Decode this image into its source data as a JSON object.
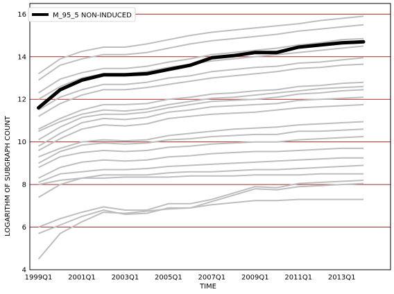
{
  "chart_data": {
    "type": "line",
    "title": "",
    "xlabel": "TIME",
    "ylabel": "LOGARITHM OF SUBGRAPH COUNT",
    "ylim": [
      4,
      16.5
    ],
    "xlim": [
      1998.6,
      2015.25
    ],
    "yticks": [
      4,
      6,
      8,
      10,
      12,
      14,
      16
    ],
    "xticks": [
      {
        "label": "1999Q1",
        "value": 1999.0
      },
      {
        "label": "2001Q1",
        "value": 2001.0
      },
      {
        "label": "2003Q1",
        "value": 2003.0
      },
      {
        "label": "2005Q1",
        "value": 2005.0
      },
      {
        "label": "2007Q1",
        "value": 2007.0
      },
      {
        "label": "2009Q1",
        "value": 2009.0
      },
      {
        "label": "2011Q1",
        "value": 2011.0
      },
      {
        "label": "2013Q1",
        "value": 2013.0
      }
    ],
    "grid": "horizontal",
    "grid_color": "#a52a2a",
    "legend_position": "top-left",
    "highlight": {
      "name": "M_95_5 NON-INDUCED",
      "color": "#000000",
      "x": [
        1999.0,
        2000.0,
        2001.0,
        2002.0,
        2003.0,
        2004.0,
        2005.0,
        2006.0,
        2007.0,
        2008.0,
        2009.0,
        2010.0,
        2011.0,
        2012.0,
        2013.0,
        2014.0
      ],
      "y": [
        11.6,
        12.45,
        12.9,
        13.15,
        13.15,
        13.2,
        13.4,
        13.6,
        13.95,
        14.05,
        14.2,
        14.2,
        14.45,
        14.55,
        14.65,
        14.7
      ]
    },
    "background_series_color": "#bdbdbd",
    "background_series": [
      {
        "x": [
          1999.0,
          2000.0,
          2001.0,
          2002.0,
          2003.0,
          2004.0,
          2005.0,
          2006.0,
          2007.0,
          2008.0,
          2009.0,
          2010.0,
          2011.0,
          2012.0,
          2013.0,
          2014.0
        ],
        "y": [
          13.2,
          13.9,
          14.25,
          14.45,
          14.45,
          14.6,
          14.8,
          15.0,
          15.15,
          15.25,
          15.35,
          15.45,
          15.55,
          15.7,
          15.8,
          15.9
        ]
      },
      {
        "x": [
          1999.0,
          2000.0,
          2001.0,
          2002.0,
          2003.0,
          2004.0,
          2005.0,
          2006.0,
          2007.0,
          2008.0,
          2009.0,
          2010.0,
          2011.0,
          2012.0,
          2013.0,
          2014.0
        ],
        "y": [
          12.9,
          13.6,
          13.9,
          14.1,
          14.1,
          14.2,
          14.4,
          14.6,
          14.75,
          14.85,
          14.95,
          15.05,
          15.2,
          15.3,
          15.4,
          15.5
        ]
      },
      {
        "x": [
          1999.0,
          2000.0,
          2001.0,
          2002.0,
          2003.0,
          2004.0,
          2005.0,
          2006.0,
          2007.0,
          2008.0,
          2009.0,
          2010.0,
          2011.0,
          2012.0,
          2013.0,
          2014.0
        ],
        "y": [
          12.3,
          12.95,
          13.25,
          13.45,
          13.45,
          13.55,
          13.75,
          13.9,
          14.1,
          14.2,
          14.3,
          14.4,
          14.55,
          14.65,
          14.8,
          14.85
        ]
      },
      {
        "x": [
          1999.0,
          2000.0,
          2001.0,
          2002.0,
          2003.0,
          2004.0,
          2005.0,
          2006.0,
          2007.0,
          2008.0,
          2009.0,
          2010.0,
          2011.0,
          2012.0,
          2013.0,
          2014.0
        ],
        "y": [
          12.0,
          12.6,
          13.0,
          13.2,
          13.2,
          13.3,
          13.5,
          13.65,
          13.8,
          13.9,
          14.0,
          14.1,
          14.2,
          14.3,
          14.4,
          14.5
        ]
      },
      {
        "x": [
          1999.0,
          2000.0,
          2001.0,
          2002.0,
          2003.0,
          2004.0,
          2005.0,
          2006.0,
          2007.0,
          2008.0,
          2009.0,
          2010.0,
          2011.0,
          2012.0,
          2013.0,
          2014.0
        ],
        "y": [
          11.5,
          12.1,
          12.45,
          12.7,
          12.7,
          12.8,
          13.0,
          13.1,
          13.3,
          13.4,
          13.5,
          13.55,
          13.7,
          13.75,
          13.85,
          13.95
        ]
      },
      {
        "x": [
          1999.0,
          2000.0,
          2001.0,
          2002.0,
          2003.0,
          2004.0,
          2005.0,
          2006.0,
          2007.0,
          2008.0,
          2009.0,
          2010.0,
          2011.0,
          2012.0,
          2013.0,
          2014.0
        ],
        "y": [
          11.2,
          11.8,
          12.2,
          12.45,
          12.45,
          12.55,
          12.7,
          12.85,
          13.0,
          13.1,
          13.2,
          13.3,
          13.45,
          13.5,
          13.6,
          13.65
        ]
      },
      {
        "x": [
          1999.0,
          2000.0,
          2001.0,
          2002.0,
          2003.0,
          2004.0,
          2005.0,
          2006.0,
          2007.0,
          2008.0,
          2009.0,
          2010.0,
          2011.0,
          2012.0,
          2013.0,
          2014.0
        ],
        "y": [
          10.6,
          11.1,
          11.5,
          11.75,
          11.75,
          11.8,
          12.0,
          12.1,
          12.25,
          12.3,
          12.4,
          12.45,
          12.6,
          12.65,
          12.75,
          12.8
        ]
      },
      {
        "x": [
          1999.0,
          2000.0,
          2001.0,
          2002.0,
          2003.0,
          2004.0,
          2005.0,
          2006.0,
          2007.0,
          2008.0,
          2009.0,
          2010.0,
          2011.0,
          2012.0,
          2013.0,
          2014.0
        ],
        "y": [
          10.5,
          10.95,
          11.3,
          11.5,
          11.45,
          11.55,
          11.75,
          11.9,
          12.05,
          12.1,
          12.2,
          12.3,
          12.4,
          12.5,
          12.55,
          12.6
        ]
      },
      {
        "x": [
          1999.0,
          2000.0,
          2001.0,
          2002.0,
          2003.0,
          2004.0,
          2005.0,
          2006.0,
          2007.0,
          2008.0,
          2009.0,
          2010.0,
          2011.0,
          2012.0,
          2013.0,
          2014.0
        ],
        "y": [
          10.1,
          10.7,
          11.15,
          11.3,
          11.3,
          11.4,
          11.6,
          11.75,
          11.9,
          11.95,
          12.0,
          12.1,
          12.25,
          12.3,
          12.4,
          12.45
        ]
      },
      {
        "x": [
          1999.0,
          2000.0,
          2001.0,
          2002.0,
          2003.0,
          2004.0,
          2005.0,
          2006.0,
          2007.0,
          2008.0,
          2009.0,
          2010.0,
          2011.0,
          2012.0,
          2013.0,
          2014.0
        ],
        "y": [
          9.8,
          10.4,
          10.9,
          11.1,
          11.05,
          11.15,
          11.4,
          11.5,
          11.65,
          11.7,
          11.75,
          11.8,
          11.95,
          12.0,
          12.05,
          12.1
        ]
      },
      {
        "x": [
          1999.0,
          2000.0,
          2001.0,
          2002.0,
          2003.0,
          2004.0,
          2005.0,
          2006.0,
          2007.0,
          2008.0,
          2009.0,
          2010.0,
          2011.0,
          2012.0,
          2013.0,
          2014.0
        ],
        "y": [
          9.6,
          10.15,
          10.6,
          10.8,
          10.75,
          10.85,
          11.1,
          11.2,
          11.3,
          11.35,
          11.4,
          11.5,
          11.6,
          11.65,
          11.7,
          11.75
        ]
      },
      {
        "x": [
          1999.0,
          2000.0,
          2001.0,
          2002.0,
          2003.0,
          2004.0,
          2005.0,
          2006.0,
          2007.0,
          2008.0,
          2009.0,
          2010.0,
          2011.0,
          2012.0,
          2013.0,
          2014.0
        ],
        "y": [
          9.3,
          9.7,
          10.0,
          10.1,
          10.05,
          10.1,
          10.3,
          10.4,
          10.5,
          10.6,
          10.65,
          10.7,
          10.8,
          10.85,
          10.9,
          10.95
        ]
      },
      {
        "x": [
          1999.0,
          2000.0,
          2001.0,
          2002.0,
          2003.0,
          2004.0,
          2005.0,
          2006.0,
          2007.0,
          2008.0,
          2009.0,
          2010.0,
          2011.0,
          2012.0,
          2013.0,
          2014.0
        ],
        "y": [
          9.0,
          9.55,
          9.85,
          9.95,
          9.9,
          9.95,
          10.1,
          10.15,
          10.25,
          10.3,
          10.35,
          10.35,
          10.5,
          10.5,
          10.55,
          10.6
        ]
      },
      {
        "x": [
          1999.0,
          2000.0,
          2001.0,
          2002.0,
          2003.0,
          2004.0,
          2005.0,
          2006.0,
          2007.0,
          2008.0,
          2009.0,
          2010.0,
          2011.0,
          2012.0,
          2013.0,
          2014.0
        ],
        "y": [
          8.8,
          9.3,
          9.5,
          9.6,
          9.55,
          9.6,
          9.75,
          9.8,
          9.9,
          9.95,
          10.0,
          10.0,
          10.1,
          10.15,
          10.2,
          10.25
        ]
      },
      {
        "x": [
          1999.0,
          2000.0,
          2001.0,
          2002.0,
          2003.0,
          2004.0,
          2005.0,
          2006.0,
          2007.0,
          2008.0,
          2009.0,
          2010.0,
          2011.0,
          2012.0,
          2013.0,
          2014.0
        ],
        "y": [
          8.3,
          8.8,
          9.05,
          9.15,
          9.1,
          9.15,
          9.3,
          9.35,
          9.45,
          9.5,
          9.55,
          9.55,
          9.6,
          9.65,
          9.7,
          9.7
        ]
      },
      {
        "x": [
          1999.0,
          2000.0,
          2001.0,
          2002.0,
          2003.0,
          2004.0,
          2005.0,
          2006.0,
          2007.0,
          2008.0,
          2009.0,
          2010.0,
          2011.0,
          2012.0,
          2013.0,
          2014.0
        ],
        "y": [
          8.1,
          8.5,
          8.6,
          8.7,
          8.7,
          8.75,
          8.85,
          8.9,
          8.95,
          9.0,
          9.05,
          9.1,
          9.15,
          9.2,
          9.25,
          9.25
        ]
      },
      {
        "x": [
          1999.0,
          2000.0,
          2001.0,
          2002.0,
          2003.0,
          2004.0,
          2005.0,
          2006.0,
          2007.0,
          2008.0,
          2009.0,
          2010.0,
          2011.0,
          2012.0,
          2013.0,
          2014.0
        ],
        "y": [
          7.4,
          8.0,
          8.3,
          8.45,
          8.45,
          8.45,
          8.55,
          8.6,
          8.6,
          8.65,
          8.7,
          8.7,
          8.75,
          8.8,
          8.85,
          8.9
        ]
      },
      {
        "x": [
          1999.0,
          2000.0,
          2001.0,
          2002.0,
          2003.0,
          2004.0,
          2005.0,
          2006.0,
          2007.0,
          2008.0,
          2009.0,
          2010.0,
          2011.0,
          2012.0,
          2013.0,
          2014.0
        ],
        "y": [
          8.0,
          8.2,
          8.3,
          8.3,
          8.35,
          8.35,
          8.35,
          8.4,
          8.4,
          8.4,
          8.45,
          8.45,
          8.45,
          8.5,
          8.5,
          8.5
        ]
      },
      {
        "x": [
          1999.0,
          2000.0,
          2001.0,
          2002.0,
          2003.0,
          2004.0,
          2005.0,
          2006.0,
          2007.0,
          2008.0,
          2009.0,
          2010.0,
          2011.0,
          2012.0,
          2013.0,
          2014.0
        ],
        "y": [
          6.0,
          6.4,
          6.7,
          6.95,
          6.8,
          6.8,
          7.1,
          7.1,
          7.3,
          7.6,
          7.9,
          7.85,
          8.05,
          8.1,
          8.15,
          8.2
        ]
      },
      {
        "x": [
          1999.0,
          2000.0,
          2001.0,
          2002.0,
          2003.0,
          2004.0,
          2005.0,
          2006.0,
          2007.0,
          2008.0,
          2009.0,
          2010.0,
          2011.0,
          2012.0,
          2013.0,
          2014.0
        ],
        "y": [
          5.7,
          6.1,
          6.5,
          6.8,
          6.6,
          6.65,
          6.9,
          6.9,
          7.2,
          7.5,
          7.8,
          7.75,
          7.9,
          7.95,
          8.0,
          8.05
        ]
      },
      {
        "x": [
          1999.0,
          2000.0,
          2001.0,
          2002.0,
          2003.0,
          2004.0,
          2005.0,
          2006.0,
          2007.0,
          2008.0,
          2009.0,
          2010.0,
          2011.0,
          2012.0,
          2013.0,
          2014.0
        ],
        "y": [
          4.5,
          5.7,
          6.25,
          6.7,
          6.65,
          6.75,
          6.85,
          6.9,
          7.05,
          7.15,
          7.25,
          7.25,
          7.3,
          7.3,
          7.3,
          7.3
        ]
      }
    ]
  }
}
